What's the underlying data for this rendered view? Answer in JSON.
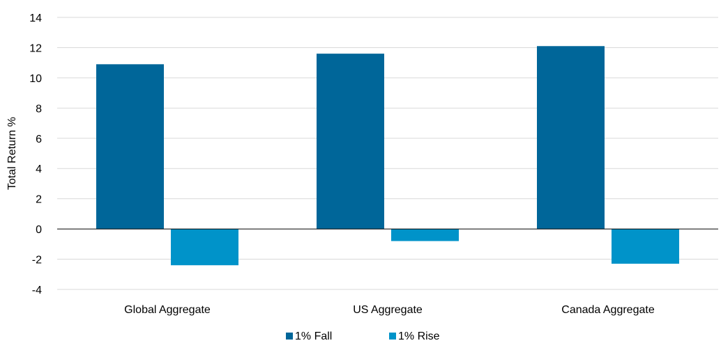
{
  "chart_data": {
    "type": "bar",
    "categories": [
      "Global Aggregate",
      "US Aggregate",
      "Canada Aggregate"
    ],
    "series": [
      {
        "name": "1% Fall",
        "values": [
          10.9,
          11.6,
          12.1
        ],
        "color": "#006699"
      },
      {
        "name": "1% Rise",
        "values": [
          -2.4,
          -0.8,
          -2.3
        ],
        "color": "#0093C9"
      }
    ],
    "title": "",
    "xlabel": "",
    "ylabel": "Total Return %",
    "ylim": [
      -4,
      14
    ],
    "yticks": [
      "-4",
      "-2",
      "0",
      "2",
      "4",
      "6",
      "8",
      "10",
      "12",
      "14"
    ],
    "grid": true,
    "legend_position": "bottom"
  }
}
